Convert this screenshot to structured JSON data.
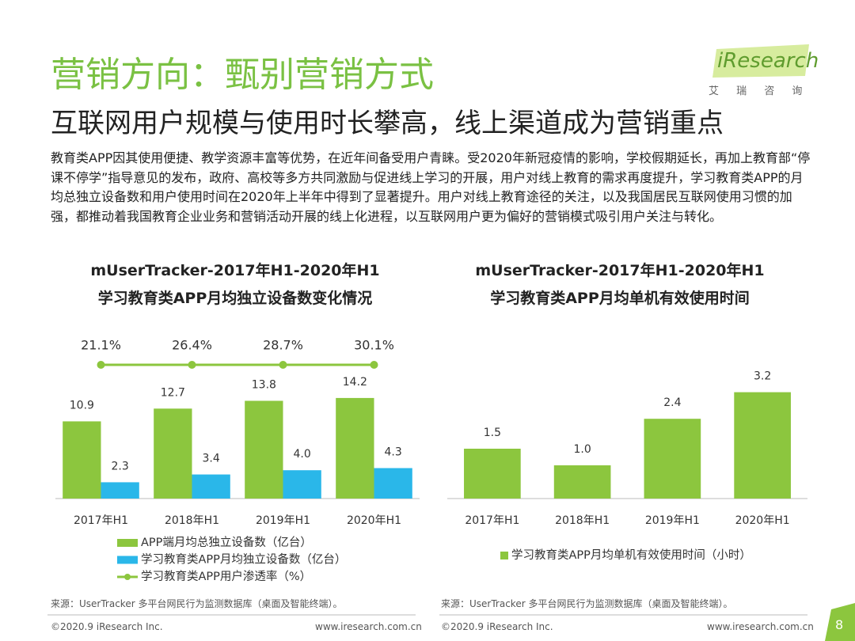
{
  "header": {
    "title": "营销方向：甄别营销方式",
    "subtitle": "互联网用户规模与使用时长攀高，线上渠道成为营销重点",
    "logo": "iResearch",
    "logo_cn": "艾 瑞 咨 询"
  },
  "body": "教育类APP因其使用便捷、教学资源丰富等优势，在近年间备受用户青睐。受2020年新冠疫情的影响，学校假期延长，再加上教育部“停课不停学”指导意见的发布，政府、高校等多方共同激励与促进线上学习的开展，用户对线上教育的需求再度提升，学习教育类APP的月均总独立设备数和用户使用时间在2020年上半年中得到了显著提升。用户对线上教育途径的关注，以及我国居民互联网使用习惯的加强，都推动着我国教育企业业务和营销活动开展的线上化进程，以互联网用户更为偏好的营销模式吸引用户关注与转化。",
  "chart_data": [
    {
      "type": "bar",
      "title": "mUserTracker-2017年H1-2020年H1学习教育类APP月均独立设备数变化情况",
      "categories": [
        "2017年H1",
        "2018年H1",
        "2019年H1",
        "2020年H1"
      ],
      "ylim": [
        0,
        20
      ],
      "series": [
        {
          "name": "APP端月均总独立设备数（亿台）",
          "color": "#8cc63e",
          "values": [
            10.9,
            12.7,
            13.8,
            14.2
          ]
        },
        {
          "name": "学习教育类APP月均独立设备数（亿台）",
          "color": "#2ab7e9",
          "values": [
            2.3,
            3.4,
            4.0,
            4.3
          ],
          "value_labels": [
            "2.3",
            "3.4",
            "4.0",
            "4.3"
          ]
        },
        {
          "name": "学习教育类APP用户渗透率（%）",
          "color": "#8cc63e",
          "type": "line",
          "values": [
            21.1,
            26.4,
            28.7,
            30.1
          ],
          "value_labels": [
            "21.1%",
            "26.4%",
            "28.7%",
            "30.1%"
          ]
        }
      ],
      "source": "来源：UserTracker 多平台网民行为监测数据库（桌面及智能终端）。"
    },
    {
      "type": "bar",
      "title": "mUserTracker-2017年H1-2020年H1学习教育类APP月均单机有效使用时间",
      "categories": [
        "2017年H1",
        "2018年H1",
        "2019年H1",
        "2020年H1"
      ],
      "ylim": [
        0,
        4
      ],
      "series": [
        {
          "name": "学习教育类APP月均单机有效使用时间（小时）",
          "color": "#8cc63e",
          "values": [
            1.5,
            1.0,
            2.4,
            3.2
          ],
          "value_labels": [
            "1.5",
            "1.0",
            "2.4",
            "3.2"
          ]
        }
      ],
      "source": "来源：UserTracker 多平台网民行为监测数据库（桌面及智能终端）。"
    }
  ],
  "footer": {
    "copyright_left": "©2020.9 iResearch Inc.",
    "url_left": "www.iresearch.com.cn",
    "copyright_right": "©2020.9 iResearch Inc.",
    "url_right": "www.iresearch.com.cn",
    "page": "8"
  }
}
